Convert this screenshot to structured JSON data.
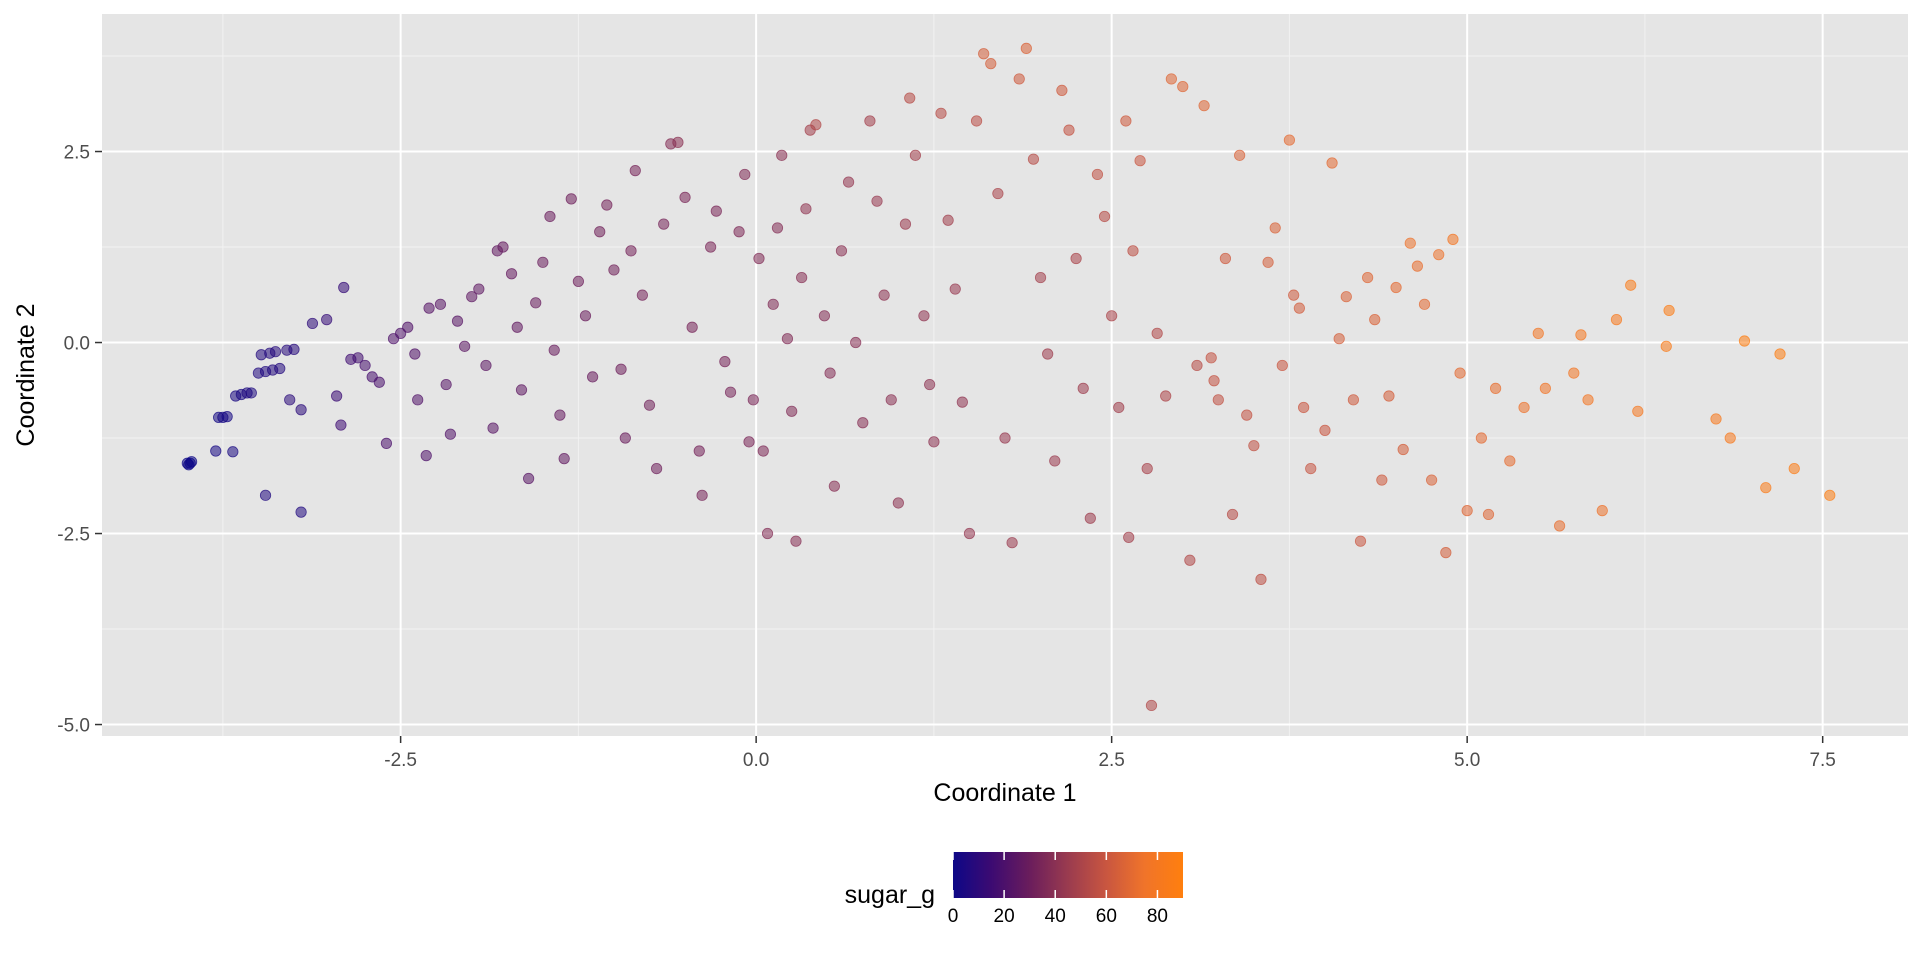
{
  "chart_data": {
    "type": "scatter",
    "xlabel": "Coordinate 1",
    "ylabel": "Coordinate 2",
    "xlim": [
      -4.6,
      8.1
    ],
    "ylim": [
      -5.15,
      4.3
    ],
    "x_ticks": [
      -2.5,
      0.0,
      2.5,
      5.0,
      7.5
    ],
    "x_tick_labels": [
      "-2.5",
      "0.0",
      "2.5",
      "5.0",
      "7.5"
    ],
    "y_ticks": [
      2.5,
      0.0,
      -2.5,
      -5.0
    ],
    "y_tick_labels": [
      "2.5",
      "0.0",
      "-2.5",
      "-5.0"
    ],
    "grid": true,
    "panel_background": "#e5e5e5",
    "grid_color": "#ffffff",
    "point_opacity": 0.55,
    "color_scale": {
      "variable": "sugar_g",
      "title": "sugar_g",
      "min": 0,
      "max": 90,
      "ticks": [
        0,
        20,
        40,
        60,
        80
      ],
      "tick_labels": [
        "0",
        "20",
        "40",
        "60",
        "80"
      ],
      "colors": [
        "#0d0887",
        "#3c0a72",
        "#6a1d5c",
        "#9a3b4f",
        "#c95640",
        "#f0742a",
        "#ff7f0e"
      ]
    },
    "legend_position": "bottom",
    "series": [
      {
        "points": [
          [
            -4.0,
            -1.58,
            0
          ],
          [
            -3.98,
            -1.58,
            0
          ],
          [
            -3.97,
            -1.56,
            0
          ],
          [
            -3.99,
            -1.6,
            0
          ],
          [
            -3.78,
            -0.98,
            2
          ],
          [
            -3.75,
            -0.98,
            3
          ],
          [
            -3.72,
            -0.97,
            3
          ],
          [
            -3.8,
            -1.42,
            3
          ],
          [
            -3.68,
            -1.43,
            4
          ],
          [
            -3.66,
            -0.7,
            4
          ],
          [
            -3.62,
            -0.68,
            4
          ],
          [
            -3.58,
            -0.66,
            5
          ],
          [
            -3.55,
            -0.66,
            5
          ],
          [
            -3.5,
            -0.4,
            6
          ],
          [
            -3.45,
            -0.38,
            6
          ],
          [
            -3.4,
            -0.36,
            7
          ],
          [
            -3.35,
            -0.34,
            7
          ],
          [
            -3.48,
            -0.16,
            7
          ],
          [
            -3.42,
            -0.14,
            7
          ],
          [
            -3.38,
            -0.12,
            8
          ],
          [
            -3.3,
            -0.1,
            8
          ],
          [
            -3.25,
            -0.09,
            8
          ],
          [
            -3.45,
            -2.0,
            6
          ],
          [
            -3.2,
            -2.22,
            6
          ],
          [
            -3.28,
            -0.75,
            9
          ],
          [
            -3.2,
            -0.88,
            9
          ],
          [
            -3.12,
            0.25,
            10
          ],
          [
            -3.02,
            0.3,
            12
          ],
          [
            -2.9,
            0.72,
            12
          ],
          [
            -2.95,
            -0.7,
            14
          ],
          [
            -2.92,
            -1.08,
            15
          ],
          [
            -2.85,
            -0.22,
            16
          ],
          [
            -2.8,
            -0.2,
            17
          ],
          [
            -2.75,
            -0.3,
            18
          ],
          [
            -2.7,
            -0.45,
            18
          ],
          [
            -2.65,
            -0.52,
            19
          ],
          [
            -2.6,
            -1.32,
            20
          ],
          [
            -2.55,
            0.05,
            21
          ],
          [
            -2.5,
            0.12,
            21
          ],
          [
            -2.45,
            0.2,
            22
          ],
          [
            -2.4,
            -0.15,
            22
          ],
          [
            -2.38,
            -0.75,
            22
          ],
          [
            -2.32,
            -1.48,
            21
          ],
          [
            -2.3,
            0.45,
            23
          ],
          [
            -2.22,
            0.5,
            24
          ],
          [
            -2.18,
            -0.55,
            23
          ],
          [
            -2.15,
            -1.2,
            22
          ],
          [
            -2.1,
            0.28,
            24
          ],
          [
            -2.05,
            -0.05,
            25
          ],
          [
            -2.0,
            0.6,
            26
          ],
          [
            -1.95,
            0.7,
            26
          ],
          [
            -1.9,
            -0.3,
            25
          ],
          [
            -1.85,
            -1.12,
            24
          ],
          [
            -1.82,
            1.2,
            27
          ],
          [
            -1.78,
            1.25,
            28
          ],
          [
            -1.72,
            0.9,
            28
          ],
          [
            -1.68,
            0.2,
            27
          ],
          [
            -1.65,
            -0.62,
            26
          ],
          [
            -1.6,
            -1.78,
            24
          ],
          [
            -1.55,
            0.52,
            29
          ],
          [
            -1.5,
            1.05,
            30
          ],
          [
            -1.45,
            1.65,
            30
          ],
          [
            -1.42,
            -0.1,
            29
          ],
          [
            -1.38,
            -0.95,
            28
          ],
          [
            -1.35,
            -1.52,
            27
          ],
          [
            -1.3,
            1.88,
            31
          ],
          [
            -1.25,
            0.8,
            31
          ],
          [
            -1.2,
            0.35,
            30
          ],
          [
            -1.15,
            -0.45,
            29
          ],
          [
            -1.1,
            1.45,
            32
          ],
          [
            -1.05,
            1.8,
            33
          ],
          [
            -1.0,
            0.95,
            32
          ],
          [
            -0.95,
            -0.35,
            31
          ],
          [
            -0.92,
            -1.25,
            30
          ],
          [
            -0.88,
            1.2,
            33
          ],
          [
            -0.85,
            2.25,
            34
          ],
          [
            -0.8,
            0.62,
            33
          ],
          [
            -0.75,
            -0.82,
            32
          ],
          [
            -0.7,
            -1.65,
            31
          ],
          [
            -0.65,
            1.55,
            34
          ],
          [
            -0.6,
            2.6,
            38
          ],
          [
            -0.55,
            2.62,
            40
          ],
          [
            -0.5,
            1.9,
            35
          ],
          [
            -0.45,
            0.2,
            34
          ],
          [
            -0.4,
            -1.42,
            33
          ],
          [
            -0.38,
            -2.0,
            34
          ],
          [
            -0.32,
            1.25,
            35
          ],
          [
            -0.28,
            1.72,
            35
          ],
          [
            -0.22,
            -0.25,
            34
          ],
          [
            -0.18,
            -0.65,
            34
          ],
          [
            -0.12,
            1.45,
            36
          ],
          [
            -0.08,
            2.2,
            37
          ],
          [
            -0.05,
            -1.3,
            35
          ],
          [
            -0.02,
            -0.75,
            35
          ],
          [
            0.02,
            1.1,
            37
          ],
          [
            0.05,
            -1.42,
            36
          ],
          [
            0.08,
            -2.5,
            38
          ],
          [
            0.12,
            0.5,
            37
          ],
          [
            0.15,
            1.5,
            38
          ],
          [
            0.18,
            2.45,
            40
          ],
          [
            0.22,
            0.05,
            37
          ],
          [
            0.25,
            -0.9,
            37
          ],
          [
            0.28,
            -2.6,
            39
          ],
          [
            0.32,
            0.85,
            39
          ],
          [
            0.35,
            1.75,
            42
          ],
          [
            0.38,
            2.78,
            48
          ],
          [
            0.42,
            2.85,
            52
          ],
          [
            0.48,
            0.35,
            38
          ],
          [
            0.52,
            -0.4,
            38
          ],
          [
            0.55,
            -1.88,
            39
          ],
          [
            0.6,
            1.2,
            40
          ],
          [
            0.65,
            2.1,
            43
          ],
          [
            0.7,
            0.0,
            39
          ],
          [
            0.75,
            -1.05,
            39
          ],
          [
            0.8,
            2.9,
            48
          ],
          [
            0.85,
            1.85,
            44
          ],
          [
            0.9,
            0.62,
            41
          ],
          [
            0.95,
            -0.75,
            40
          ],
          [
            1.0,
            -2.1,
            41
          ],
          [
            1.05,
            1.55,
            45
          ],
          [
            1.08,
            3.2,
            54
          ],
          [
            1.12,
            2.45,
            48
          ],
          [
            1.18,
            0.35,
            42
          ],
          [
            1.22,
            -0.55,
            41
          ],
          [
            1.25,
            -1.3,
            41
          ],
          [
            1.3,
            3.0,
            54
          ],
          [
            1.35,
            1.6,
            47
          ],
          [
            1.4,
            0.7,
            44
          ],
          [
            1.45,
            -0.78,
            42
          ],
          [
            1.5,
            -2.5,
            43
          ],
          [
            1.55,
            2.9,
            55
          ],
          [
            1.6,
            3.78,
            64
          ],
          [
            1.65,
            3.65,
            64
          ],
          [
            1.7,
            1.95,
            50
          ],
          [
            1.75,
            -1.25,
            44
          ],
          [
            1.8,
            -2.62,
            45
          ],
          [
            1.85,
            3.45,
            62
          ],
          [
            1.9,
            3.85,
            66
          ],
          [
            1.95,
            2.4,
            54
          ],
          [
            2.0,
            0.85,
            48
          ],
          [
            2.05,
            -0.15,
            46
          ],
          [
            2.1,
            -1.55,
            45
          ],
          [
            2.15,
            3.3,
            62
          ],
          [
            2.2,
            2.78,
            58
          ],
          [
            2.25,
            1.1,
            50
          ],
          [
            2.3,
            -0.6,
            46
          ],
          [
            2.35,
            -2.3,
            46
          ],
          [
            2.4,
            2.2,
            57
          ],
          [
            2.45,
            1.65,
            54
          ],
          [
            2.5,
            0.35,
            50
          ],
          [
            2.55,
            -0.85,
            47
          ],
          [
            2.6,
            2.9,
            62
          ],
          [
            2.62,
            -2.55,
            48
          ],
          [
            2.65,
            1.2,
            56
          ],
          [
            2.7,
            2.38,
            60
          ],
          [
            2.75,
            -1.65,
            49
          ],
          [
            2.78,
            -4.75,
            52
          ],
          [
            2.82,
            0.12,
            52
          ],
          [
            2.88,
            -0.7,
            51
          ],
          [
            2.92,
            3.45,
            68
          ],
          [
            3.0,
            3.35,
            68
          ],
          [
            3.05,
            -2.85,
            52
          ],
          [
            3.1,
            -0.3,
            54
          ],
          [
            3.15,
            3.1,
            68
          ],
          [
            3.2,
            -0.2,
            58
          ],
          [
            3.22,
            -0.5,
            58
          ],
          [
            3.25,
            -0.75,
            57
          ],
          [
            3.3,
            1.1,
            62
          ],
          [
            3.35,
            -2.25,
            54
          ],
          [
            3.4,
            2.45,
            66
          ],
          [
            3.45,
            -0.95,
            58
          ],
          [
            3.5,
            -1.35,
            57
          ],
          [
            3.55,
            -3.1,
            56
          ],
          [
            3.6,
            1.05,
            64
          ],
          [
            3.65,
            1.5,
            66
          ],
          [
            3.7,
            -0.3,
            60
          ],
          [
            3.75,
            2.65,
            70
          ],
          [
            3.78,
            0.62,
            62
          ],
          [
            3.82,
            0.45,
            63
          ],
          [
            3.85,
            -0.85,
            60
          ],
          [
            3.9,
            -1.65,
            59
          ],
          [
            4.0,
            -1.15,
            60
          ],
          [
            4.05,
            2.35,
            70
          ],
          [
            4.1,
            0.05,
            64
          ],
          [
            4.15,
            0.6,
            66
          ],
          [
            4.2,
            -0.75,
            62
          ],
          [
            4.25,
            -2.6,
            60
          ],
          [
            4.3,
            0.85,
            68
          ],
          [
            4.35,
            0.3,
            66
          ],
          [
            4.4,
            -1.8,
            62
          ],
          [
            4.45,
            -0.7,
            64
          ],
          [
            4.5,
            0.72,
            70
          ],
          [
            4.55,
            -1.4,
            64
          ],
          [
            4.6,
            1.3,
            74
          ],
          [
            4.65,
            1.0,
            72
          ],
          [
            4.7,
            0.5,
            70
          ],
          [
            4.75,
            -1.8,
            66
          ],
          [
            4.8,
            1.15,
            74
          ],
          [
            4.85,
            -2.75,
            64
          ],
          [
            4.9,
            1.35,
            78
          ],
          [
            4.95,
            -0.4,
            70
          ],
          [
            5.0,
            -2.2,
            68
          ],
          [
            5.1,
            -1.25,
            70
          ],
          [
            5.15,
            -2.25,
            68
          ],
          [
            5.2,
            -0.6,
            72
          ],
          [
            5.3,
            -1.55,
            71
          ],
          [
            5.4,
            -0.85,
            74
          ],
          [
            5.5,
            0.12,
            78
          ],
          [
            5.55,
            -0.6,
            76
          ],
          [
            5.65,
            -2.4,
            72
          ],
          [
            5.75,
            -0.4,
            78
          ],
          [
            5.8,
            0.1,
            80
          ],
          [
            5.85,
            -0.75,
            78
          ],
          [
            5.95,
            -2.2,
            74
          ],
          [
            6.05,
            0.3,
            82
          ],
          [
            6.15,
            0.75,
            84
          ],
          [
            6.2,
            -0.9,
            80
          ],
          [
            6.4,
            -0.05,
            84
          ],
          [
            6.42,
            0.42,
            86
          ],
          [
            6.75,
            -1.0,
            82
          ],
          [
            6.85,
            -1.25,
            82
          ],
          [
            6.95,
            0.02,
            88
          ],
          [
            7.1,
            -1.9,
            84
          ],
          [
            7.2,
            -0.15,
            88
          ],
          [
            7.3,
            -1.65,
            86
          ],
          [
            7.55,
            -2.0,
            88
          ]
        ]
      }
    ]
  }
}
